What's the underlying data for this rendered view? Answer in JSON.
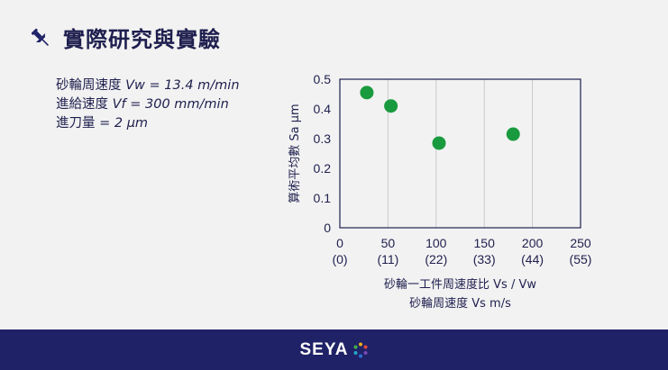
{
  "header": {
    "title": "實際研究與實驗",
    "icon": "pushpin-icon"
  },
  "params": [
    {
      "label": "砂輪周速度 ",
      "formula": "Vw  = 13.4 m/min"
    },
    {
      "label": "進給速度 ",
      "formula": "Vf  = 300 mm/min"
    },
    {
      "label": "進刀量 ",
      "formula": "= 2 μm"
    }
  ],
  "chart_data": {
    "type": "scatter",
    "ylabel": "算術平均數 Sa μm",
    "xlabel_line1": "砂輪一工件周速度比 Vs / Vw",
    "xlabel_line2": "砂輪周速度 Vs m/s",
    "xlim": [
      0,
      250
    ],
    "ylim": [
      0,
      0.5
    ],
    "x_ticks": [
      {
        "value": 0,
        "label": "0",
        "sub": "(0)"
      },
      {
        "value": 50,
        "label": "50",
        "sub": "(11)"
      },
      {
        "value": 100,
        "label": "100",
        "sub": "(22)"
      },
      {
        "value": 150,
        "label": "150",
        "sub": "(33)"
      },
      {
        "value": 200,
        "label": "200",
        "sub": "(44)"
      },
      {
        "value": 250,
        "label": "250",
        "sub": "(55)"
      }
    ],
    "y_ticks": [
      {
        "value": 0,
        "label": "0"
      },
      {
        "value": 0.1,
        "label": "0.1"
      },
      {
        "value": 0.2,
        "label": "0.2"
      },
      {
        "value": 0.3,
        "label": "0.3"
      },
      {
        "value": 0.4,
        "label": "0.4"
      },
      {
        "value": 0.5,
        "label": "0.5"
      }
    ],
    "grid": "vertical",
    "points": [
      {
        "x": 28,
        "y": 0.455
      },
      {
        "x": 53,
        "y": 0.41
      },
      {
        "x": 103,
        "y": 0.285
      },
      {
        "x": 180,
        "y": 0.315
      }
    ],
    "marker_color": "#1a9a3e"
  },
  "footer": {
    "brand": "SEYA"
  },
  "colors": {
    "navy": "#1f2266",
    "text": "#1f1f4f",
    "background": "#f2f2f2"
  }
}
